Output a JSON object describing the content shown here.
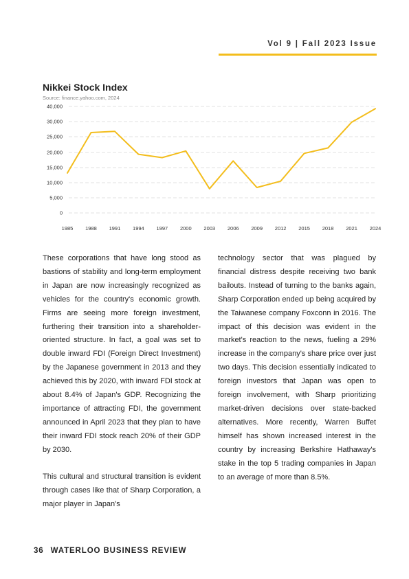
{
  "header": {
    "issue": "Vol 9 | Fall 2023 Issue",
    "accent_color": "#f3bd1c"
  },
  "chart_data": {
    "type": "line",
    "title": "Nikkei Stock Index",
    "subtitle": "Source: finance.yahoo.com, 2024",
    "xlabel": "",
    "ylabel": "",
    "x": [
      "1985",
      "1988",
      "1991",
      "1994",
      "1997",
      "2000",
      "2003",
      "2006",
      "2009",
      "2012",
      "2015",
      "2018",
      "2021",
      "2024"
    ],
    "y_ticks": [
      "0",
      "5,000",
      "10,000",
      "15,000",
      "20,000",
      "25,000",
      "30,000",
      "40,000"
    ],
    "series": [
      {
        "values": [
          13200,
          26600,
          27000,
          19400,
          18300,
          20500,
          8000,
          17200,
          8400,
          10500,
          19700,
          21500,
          30000,
          34500
        ],
        "color": "#f3bd1c"
      }
    ],
    "grid": "horizontal-dashed",
    "legend": "none"
  },
  "article": {
    "left_paragraphs": [
      "These corporations that have long stood as bastions of stability and long-term employment in Japan are now increasingly recognized as vehicles for the country's economic growth. Firms are seeing more foreign investment, furthering their transition into a shareholder-oriented structure. In fact, a goal was set to double inward FDI (Foreign Direct Investment) by the Japanese government in 2013 and they achieved this by 2020, with inward FDI stock at about 8.4% of Japan's GDP. Recognizing the importance of attracting FDI, the government announced in April 2023 that they plan to have their inward FDI stock reach 20% of their GDP by 2030.",
      "This cultural and structural transition is evident through cases like that of Sharp Corporation, a major player in Japan's"
    ],
    "right_paragraphs": [
      "technology sector that was plagued by financial distress despite receiving two bank bailouts. Instead of turning to the banks again, Sharp Corporation ended up being acquired by the Taiwanese company Foxconn in 2016. The impact of this decision was evident in the market's reaction to the news, fueling a 29% increase in the company's share price over just two days. This decision essentially indicated to foreign investors that Japan was open to foreign involvement, with Sharp prioritizing market-driven decisions over state-backed alternatives. More recently, Warren Buffet himself has shown increased interest in the country by increasing Berkshire Hathaway's stake in the top 5 trading companies in Japan to an average of more than 8.5%."
    ]
  },
  "footer": {
    "page_number": "36",
    "publication": "WATERLOO BUSINESS REVIEW"
  }
}
